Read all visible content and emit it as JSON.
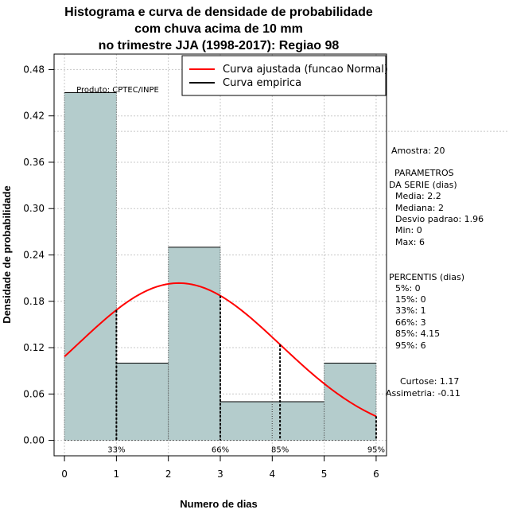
{
  "chart_data": {
    "type": "bar",
    "title_lines": [
      "Histograma e curva de densidade de probabilidade",
      "com chuva acima de 10 mm",
      "no trimestre JJA (1998-2017): Regiao 98"
    ],
    "xlabel": "Numero de dias",
    "ylabel": "Densidade de probabilidade",
    "xlim": [
      -0.2,
      6.2
    ],
    "ylim": [
      -0.02,
      0.5
    ],
    "xticks": [
      0,
      1,
      2,
      3,
      4,
      5,
      6
    ],
    "yticks": [
      "0.00",
      "0.06",
      "0.12",
      "0.18",
      "0.24",
      "0.30",
      "0.36",
      "0.42",
      "0.48"
    ],
    "bins": [
      {
        "from": 0,
        "to": 1,
        "density": 0.45
      },
      {
        "from": 1,
        "to": 2,
        "density": 0.1
      },
      {
        "from": 2,
        "to": 3,
        "density": 0.25
      },
      {
        "from": 3,
        "to": 4,
        "density": 0.05
      },
      {
        "from": 4,
        "to": 5,
        "density": 0.05
      },
      {
        "from": 5,
        "to": 6,
        "density": 0.1
      }
    ],
    "normal_fit": {
      "mean": 2.2,
      "sd": 1.96,
      "x_range": [
        0,
        6
      ]
    },
    "reference_hline": 0.4,
    "percentile_lines": [
      {
        "x": 1,
        "label": "33%"
      },
      {
        "x": 3,
        "label": "66%"
      },
      {
        "x": 4.15,
        "label": "85%"
      },
      {
        "x": 6,
        "label": "95%"
      }
    ],
    "legend": {
      "placement": "top-right",
      "entries": [
        {
          "label": "Curva ajustada (funcao Normal)",
          "color": "#ff0000"
        },
        {
          "label": "Curva empirica",
          "color": "#000000"
        }
      ]
    },
    "product_label": "Produto: CPTEC/INPE",
    "colors": {
      "bar_fill": "#b4cccc",
      "curve": "#ff0000",
      "grid": "#c8c8c8"
    },
    "grid": true
  },
  "side_panel": {
    "amostra": "Amostra: 20",
    "param_title_1": "PARAMETROS",
    "param_title_2": "DA SERIE (dias)",
    "params": [
      "Media: 2.2",
      "Mediana: 2",
      "Desvio padrao: 1.96",
      "Min: 0",
      "Max: 6"
    ],
    "perc_title": "PERCENTIS (dias)",
    "percentis": [
      "5%: 0",
      "15%: 0",
      "33%: 1",
      "66%: 3",
      "85%: 4.15",
      "95%: 6"
    ],
    "curtose": "Curtose: 1.17",
    "assimetria": "Assimetria: -0.11"
  }
}
